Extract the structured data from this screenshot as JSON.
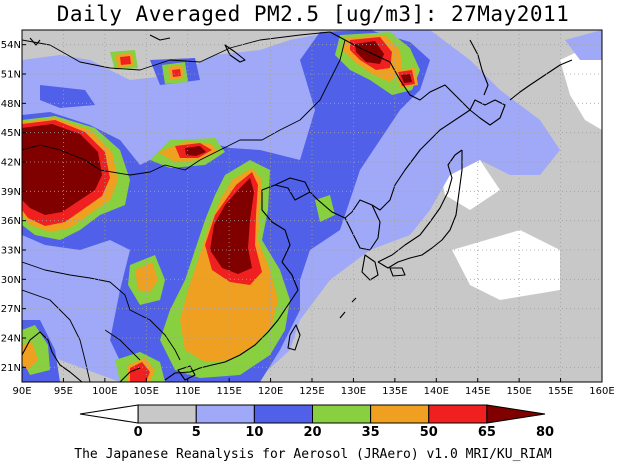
{
  "title": "Daily Averaged PM2.5 [ug/m3]: 27May2011",
  "footer": "The Japanese Reanalysis for Aerosol (JRAero) v1.0 MRI/KU_RIAM",
  "lon_labels": [
    "90E",
    "95E",
    "100E",
    "105E",
    "110E",
    "115E",
    "120E",
    "125E",
    "130E",
    "135E",
    "140E",
    "145E",
    "150E",
    "155E",
    "160E"
  ],
  "lat_labels": [
    "54N",
    "51N",
    "48N",
    "45N",
    "42N",
    "39N",
    "36N",
    "33N",
    "30N",
    "27N",
    "24N",
    "21N"
  ],
  "colorbar": {
    "levels": [
      "0",
      "5",
      "10",
      "20",
      "35",
      "50",
      "65",
      "80"
    ],
    "colors": [
      "#ffffff",
      "#c8c8c8",
      "#a0a8f8",
      "#5060e8",
      "#88d040",
      "#f0a020",
      "#f02020",
      "#800000"
    ]
  },
  "colors": {
    "background": "#c8c8c8",
    "coastline": "#000000",
    "grid": "#a0a0a0"
  }
}
